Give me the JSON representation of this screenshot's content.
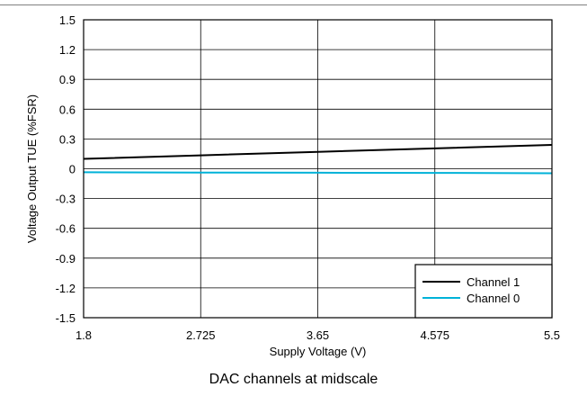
{
  "chart_data": {
    "type": "line",
    "title": "",
    "xlabel": "Supply Voltage (V)",
    "ylabel": "Voltage Output TUE (%FSR)",
    "xlim": [
      1.8,
      5.5
    ],
    "ylim": [
      -1.5,
      1.5
    ],
    "x_ticks": [
      "1.8",
      "2.725",
      "3.65",
      "4.575",
      "5.5"
    ],
    "y_ticks": [
      "1.5",
      "1.2",
      "0.9",
      "0.6",
      "0.3",
      "0",
      "-0.3",
      "-0.6",
      "-0.9",
      "-1.2",
      "-1.5"
    ],
    "x_tick_values": [
      1.8,
      2.725,
      3.65,
      4.575,
      5.5
    ],
    "y_tick_values": [
      1.5,
      1.2,
      0.9,
      0.6,
      0.3,
      0,
      -0.3,
      -0.6,
      -0.9,
      -1.2,
      -1.5
    ],
    "grid": true,
    "legend_position": "bottom-right",
    "series": [
      {
        "name": "Channel 1",
        "color": "#000000",
        "x": [
          1.8,
          2.725,
          3.65,
          4.575,
          5.5
        ],
        "y": [
          0.1,
          0.135,
          0.17,
          0.205,
          0.24
        ]
      },
      {
        "name": "Channel 0",
        "color": "#00b2d8",
        "x": [
          1.8,
          2.725,
          3.65,
          4.575,
          5.5
        ],
        "y": [
          -0.035,
          -0.038,
          -0.04,
          -0.042,
          -0.045
        ]
      }
    ]
  },
  "caption": "DAC channels at midscale"
}
